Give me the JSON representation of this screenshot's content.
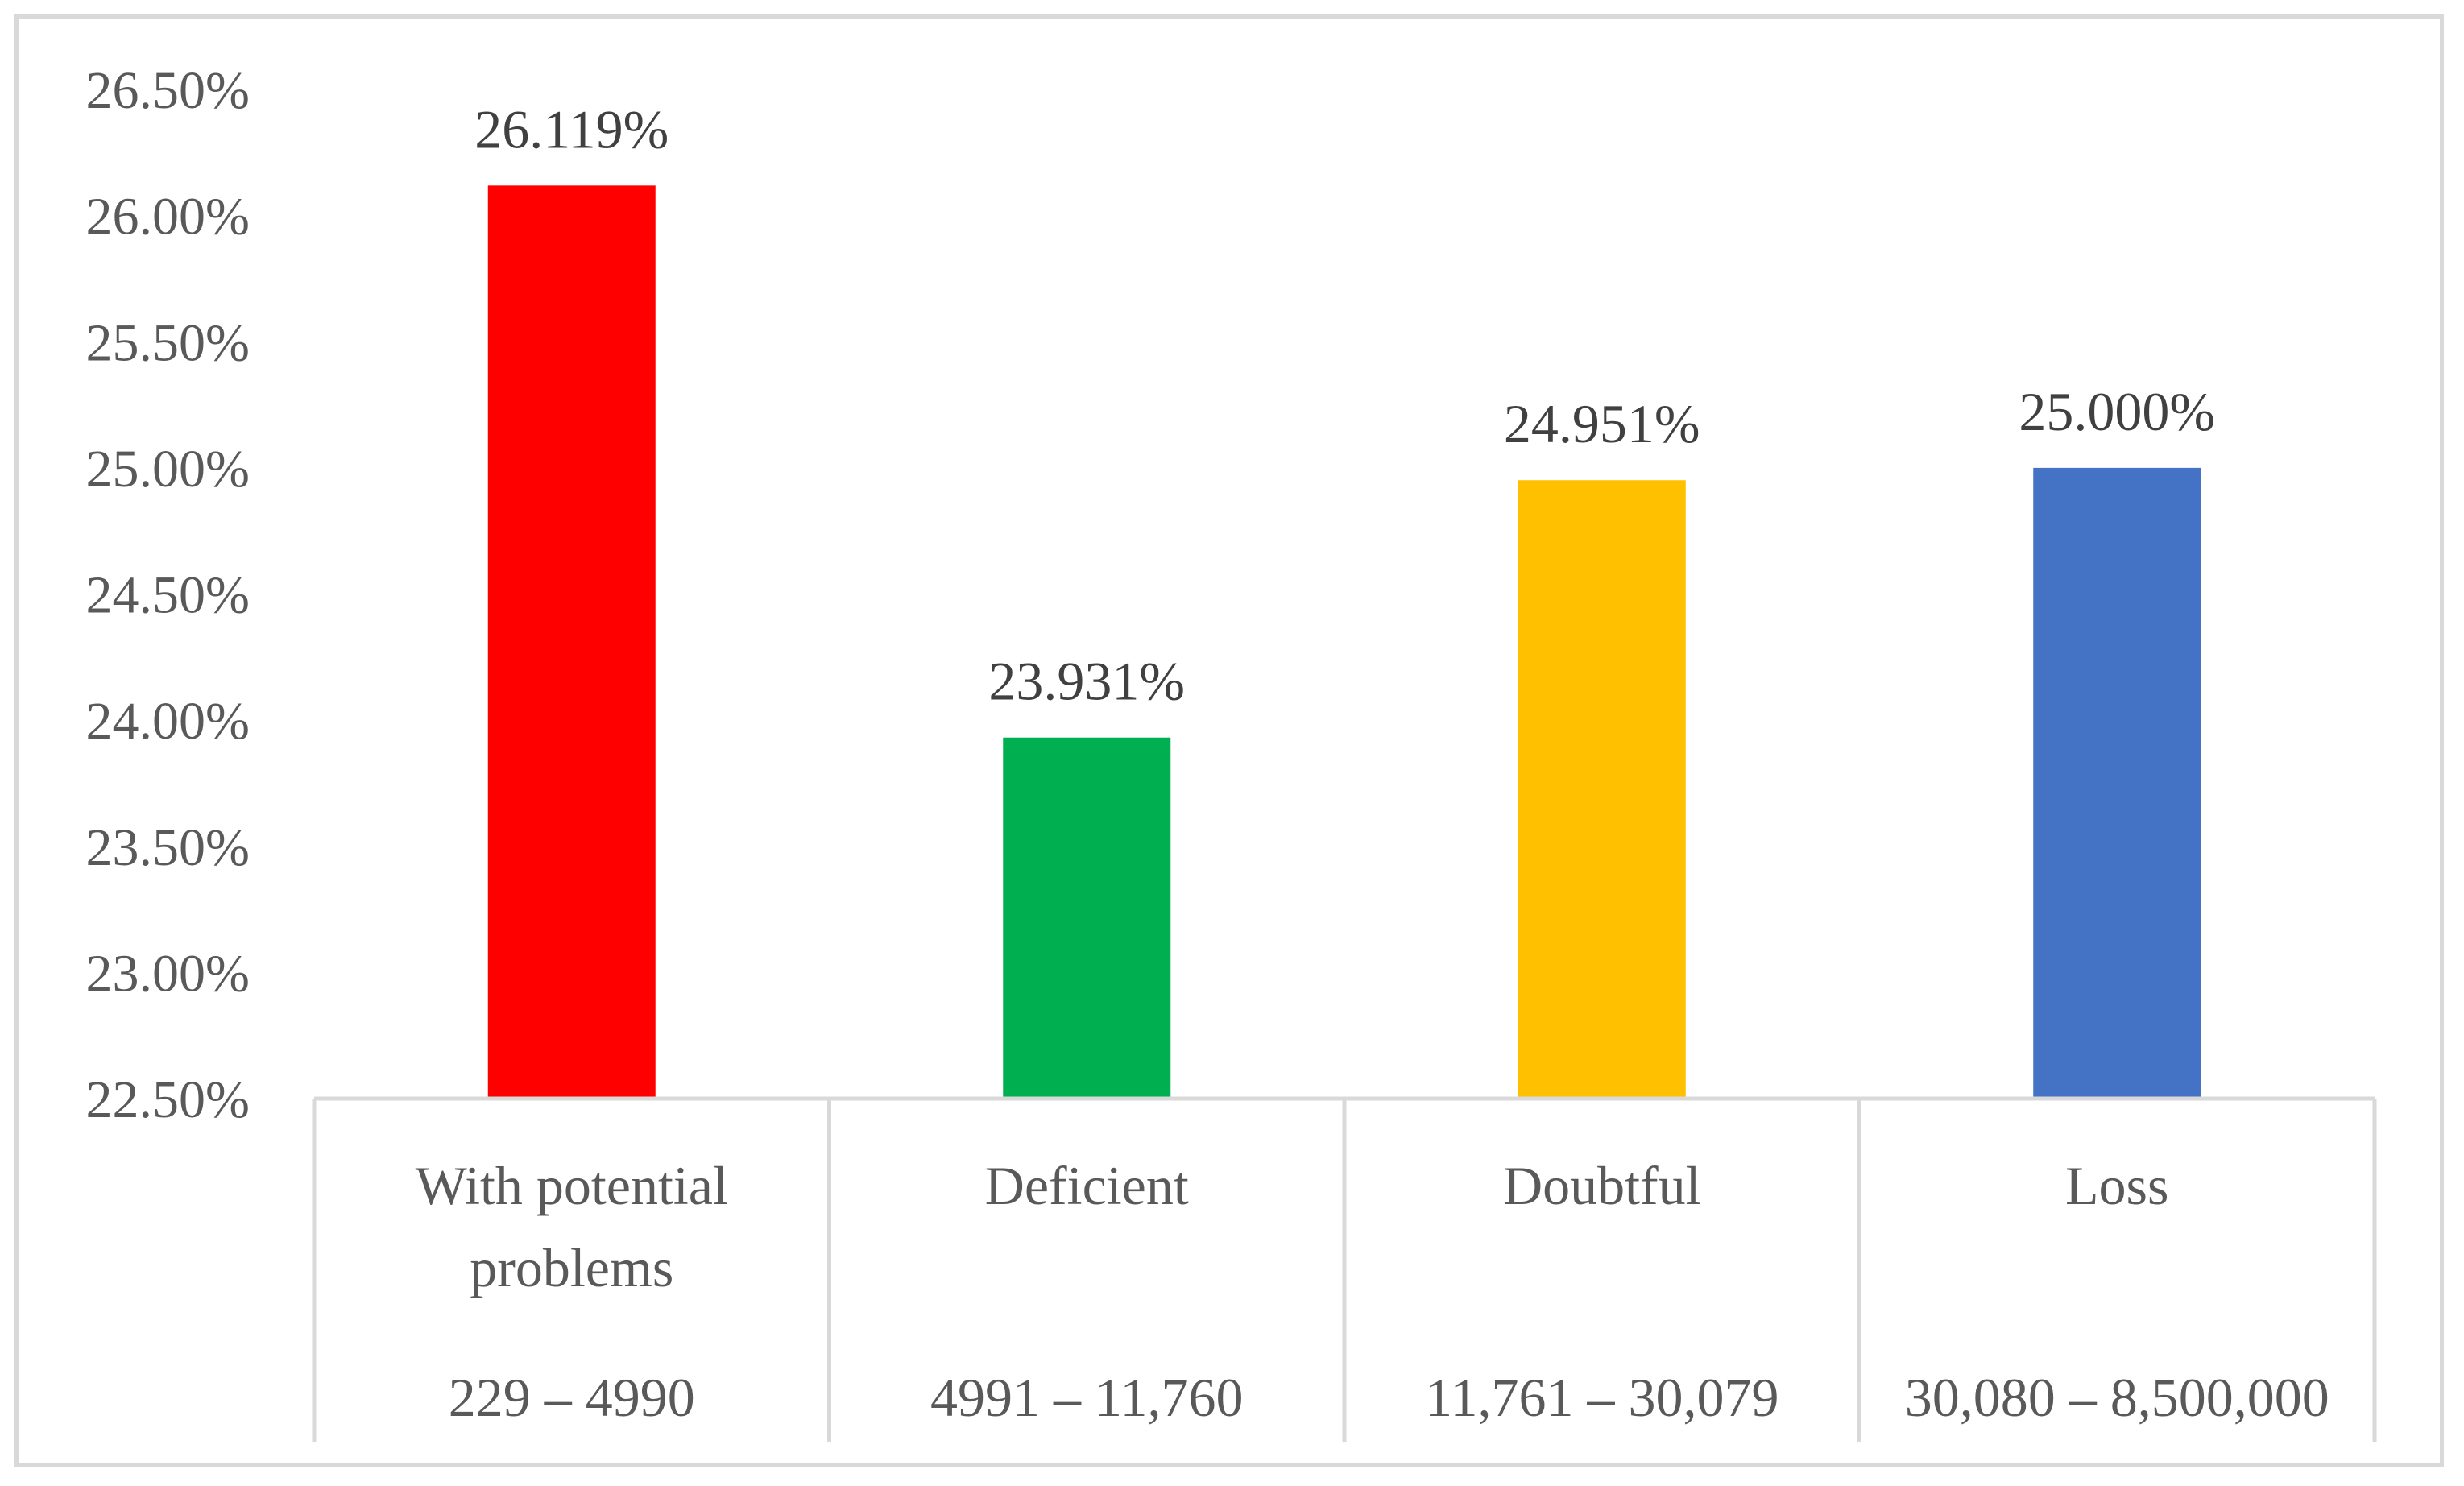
{
  "chart_data": {
    "type": "bar",
    "categories": [
      {
        "label": [
          "With potential",
          "problems"
        ],
        "range": "229 – 4990",
        "value": 26.119,
        "data_label": "26.119%",
        "color": "#ff0000"
      },
      {
        "label": [
          "Deficient"
        ],
        "range": "4991 – 11,760",
        "value": 23.931,
        "data_label": "23.931%",
        "color": "#00b050"
      },
      {
        "label": [
          "Doubtful"
        ],
        "range": "11,761 – 30,079",
        "value": 24.951,
        "data_label": "24.951%",
        "color": "#ffc000"
      },
      {
        "label": [
          "Loss"
        ],
        "range": "30,080 – 8,500,000",
        "value": 25.0,
        "data_label": "25.000%",
        "color": "#4472c4"
      }
    ],
    "y_ticks": [
      "22.50%",
      "23.00%",
      "23.50%",
      "24.00%",
      "24.50%",
      "25.00%",
      "25.50%",
      "26.00%",
      "26.50%"
    ],
    "ylim": [
      22.5,
      26.5
    ],
    "grid": false,
    "title": "",
    "xlabel": "",
    "ylabel": ""
  }
}
